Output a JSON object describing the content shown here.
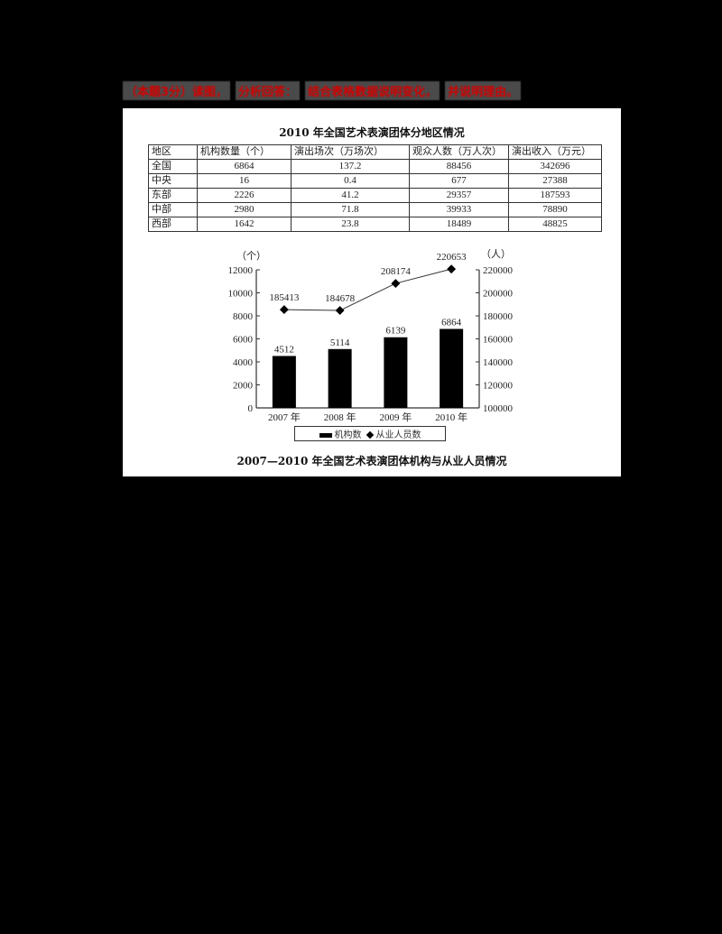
{
  "instruction": {
    "segments": [
      "（本题3分）读图，",
      "分析回答：",
      "结合表格数据说明变化，",
      "并说明理由。"
    ],
    "color": "#d40000"
  },
  "table": {
    "title": "2010 年全国艺术表演团体分地区情况",
    "headers": [
      "地区",
      "机构数量（个）",
      "演出场次（万场次）",
      "观众人数（万人次）",
      "演出收入（万元）"
    ],
    "rows": [
      [
        "全国",
        "6864",
        "137.2",
        "88456",
        "342696"
      ],
      [
        "中央",
        "16",
        "0.4",
        "677",
        "27388"
      ],
      [
        "东部",
        "2226",
        "41.2",
        "29357",
        "187593"
      ],
      [
        "中部",
        "2980",
        "71.8",
        "39933",
        "78890"
      ],
      [
        "西部",
        "1642",
        "23.8",
        "18489",
        "48825"
      ]
    ]
  },
  "chart_data": {
    "type": "bar",
    "title": "2007—2010 年全国艺术表演团体机构与从业人员情况",
    "categories": [
      "2007 年",
      "2008 年",
      "2009 年",
      "2010 年"
    ],
    "series": [
      {
        "name": "机构数",
        "type": "bar",
        "axis": "left",
        "values": [
          4512,
          5114,
          6139,
          6864
        ]
      },
      {
        "name": "从业人员数",
        "type": "line",
        "axis": "right",
        "values": [
          185413,
          184678,
          208174,
          220653
        ]
      }
    ],
    "left_axis": {
      "unit": "（个）",
      "ticks": [
        "0",
        "2000",
        "4000",
        "6000",
        "8000",
        "10000",
        "12000"
      ],
      "range": [
        0,
        12000
      ]
    },
    "right_axis": {
      "unit": "（人）",
      "ticks": [
        "100000",
        "120000",
        "140000",
        "160000",
        "180000",
        "200000",
        "220000"
      ],
      "range": [
        100000,
        220000
      ]
    },
    "legend": [
      "机构数",
      "从业人员数"
    ],
    "legend_position": "bottom"
  }
}
